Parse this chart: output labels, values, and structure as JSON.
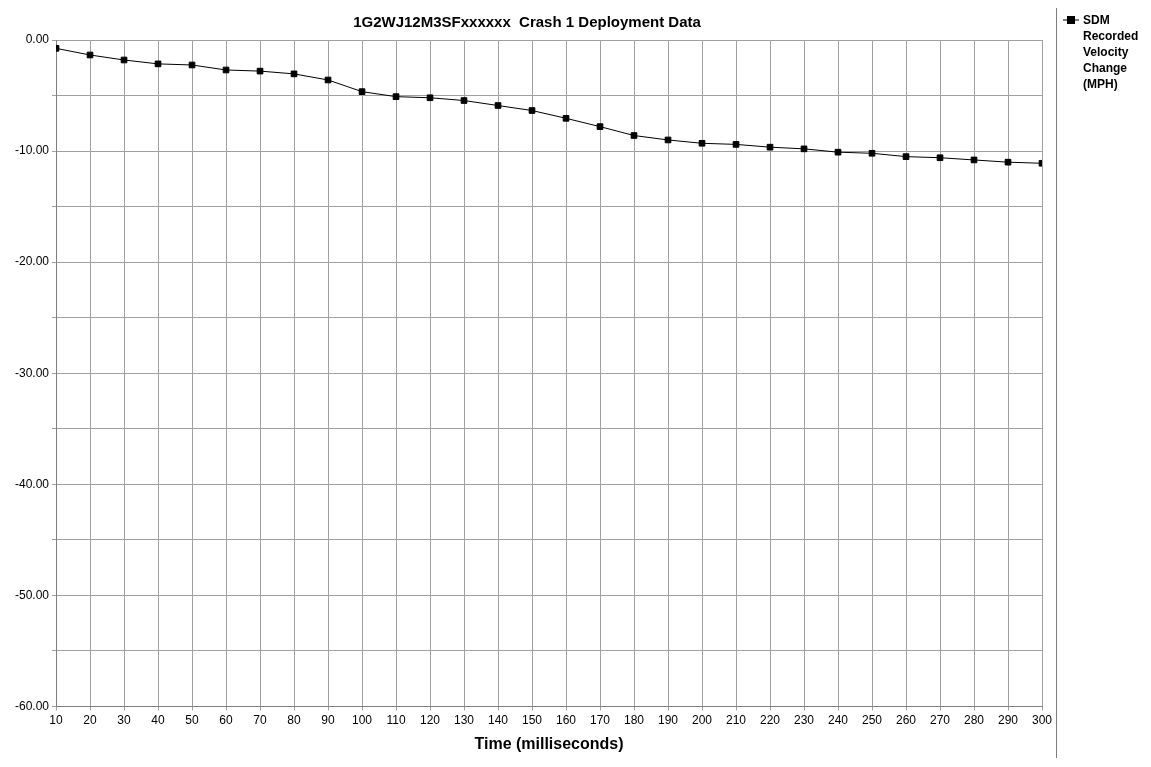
{
  "chart_data": {
    "type": "line",
    "title": "1G2WJ12M3SFxxxxxx  Crash 1 Deployment Data",
    "xlabel": "Time (milliseconds)",
    "x": [
      10,
      20,
      30,
      40,
      50,
      60,
      70,
      80,
      90,
      100,
      110,
      120,
      130,
      140,
      150,
      160,
      170,
      180,
      190,
      200,
      210,
      220,
      230,
      240,
      250,
      260,
      270,
      280,
      290,
      300
    ],
    "series": [
      {
        "name": "SDM Recorded Velocity Change (MPH)",
        "color": "#000000",
        "values": [
          -0.75,
          -1.35,
          -1.8,
          -2.15,
          -2.25,
          -2.7,
          -2.8,
          -3.05,
          -3.6,
          -4.65,
          -5.1,
          -5.2,
          -5.45,
          -5.9,
          -6.35,
          -7.05,
          -7.8,
          -8.6,
          -9.0,
          -9.3,
          -9.4,
          -9.65,
          -9.8,
          -10.1,
          -10.2,
          -10.5,
          -10.6,
          -10.8,
          -11.0,
          -11.1
        ]
      }
    ],
    "xlim": [
      10,
      300
    ],
    "xticks": [
      10,
      20,
      30,
      40,
      50,
      60,
      70,
      80,
      90,
      100,
      110,
      120,
      130,
      140,
      150,
      160,
      170,
      180,
      190,
      200,
      210,
      220,
      230,
      240,
      250,
      260,
      270,
      280,
      290,
      300
    ],
    "ylim": [
      -60,
      0
    ],
    "yticks": [
      {
        "value": 0,
        "label": "0.00"
      },
      {
        "value": -5,
        "label": null
      },
      {
        "value": -10,
        "label": "-10.00"
      },
      {
        "value": -15,
        "label": null
      },
      {
        "value": -20,
        "label": "-20.00"
      },
      {
        "value": -25,
        "label": null
      },
      {
        "value": -30,
        "label": "-30.00"
      },
      {
        "value": -35,
        "label": null
      },
      {
        "value": -40,
        "label": "-40.00"
      },
      {
        "value": -45,
        "label": null
      },
      {
        "value": -50,
        "label": "-50.00"
      },
      {
        "value": -55,
        "label": null
      },
      {
        "value": -60,
        "label": "-60.00"
      }
    ],
    "grid": true,
    "legend": "top right",
    "marker": "square",
    "line_style": "solid"
  }
}
